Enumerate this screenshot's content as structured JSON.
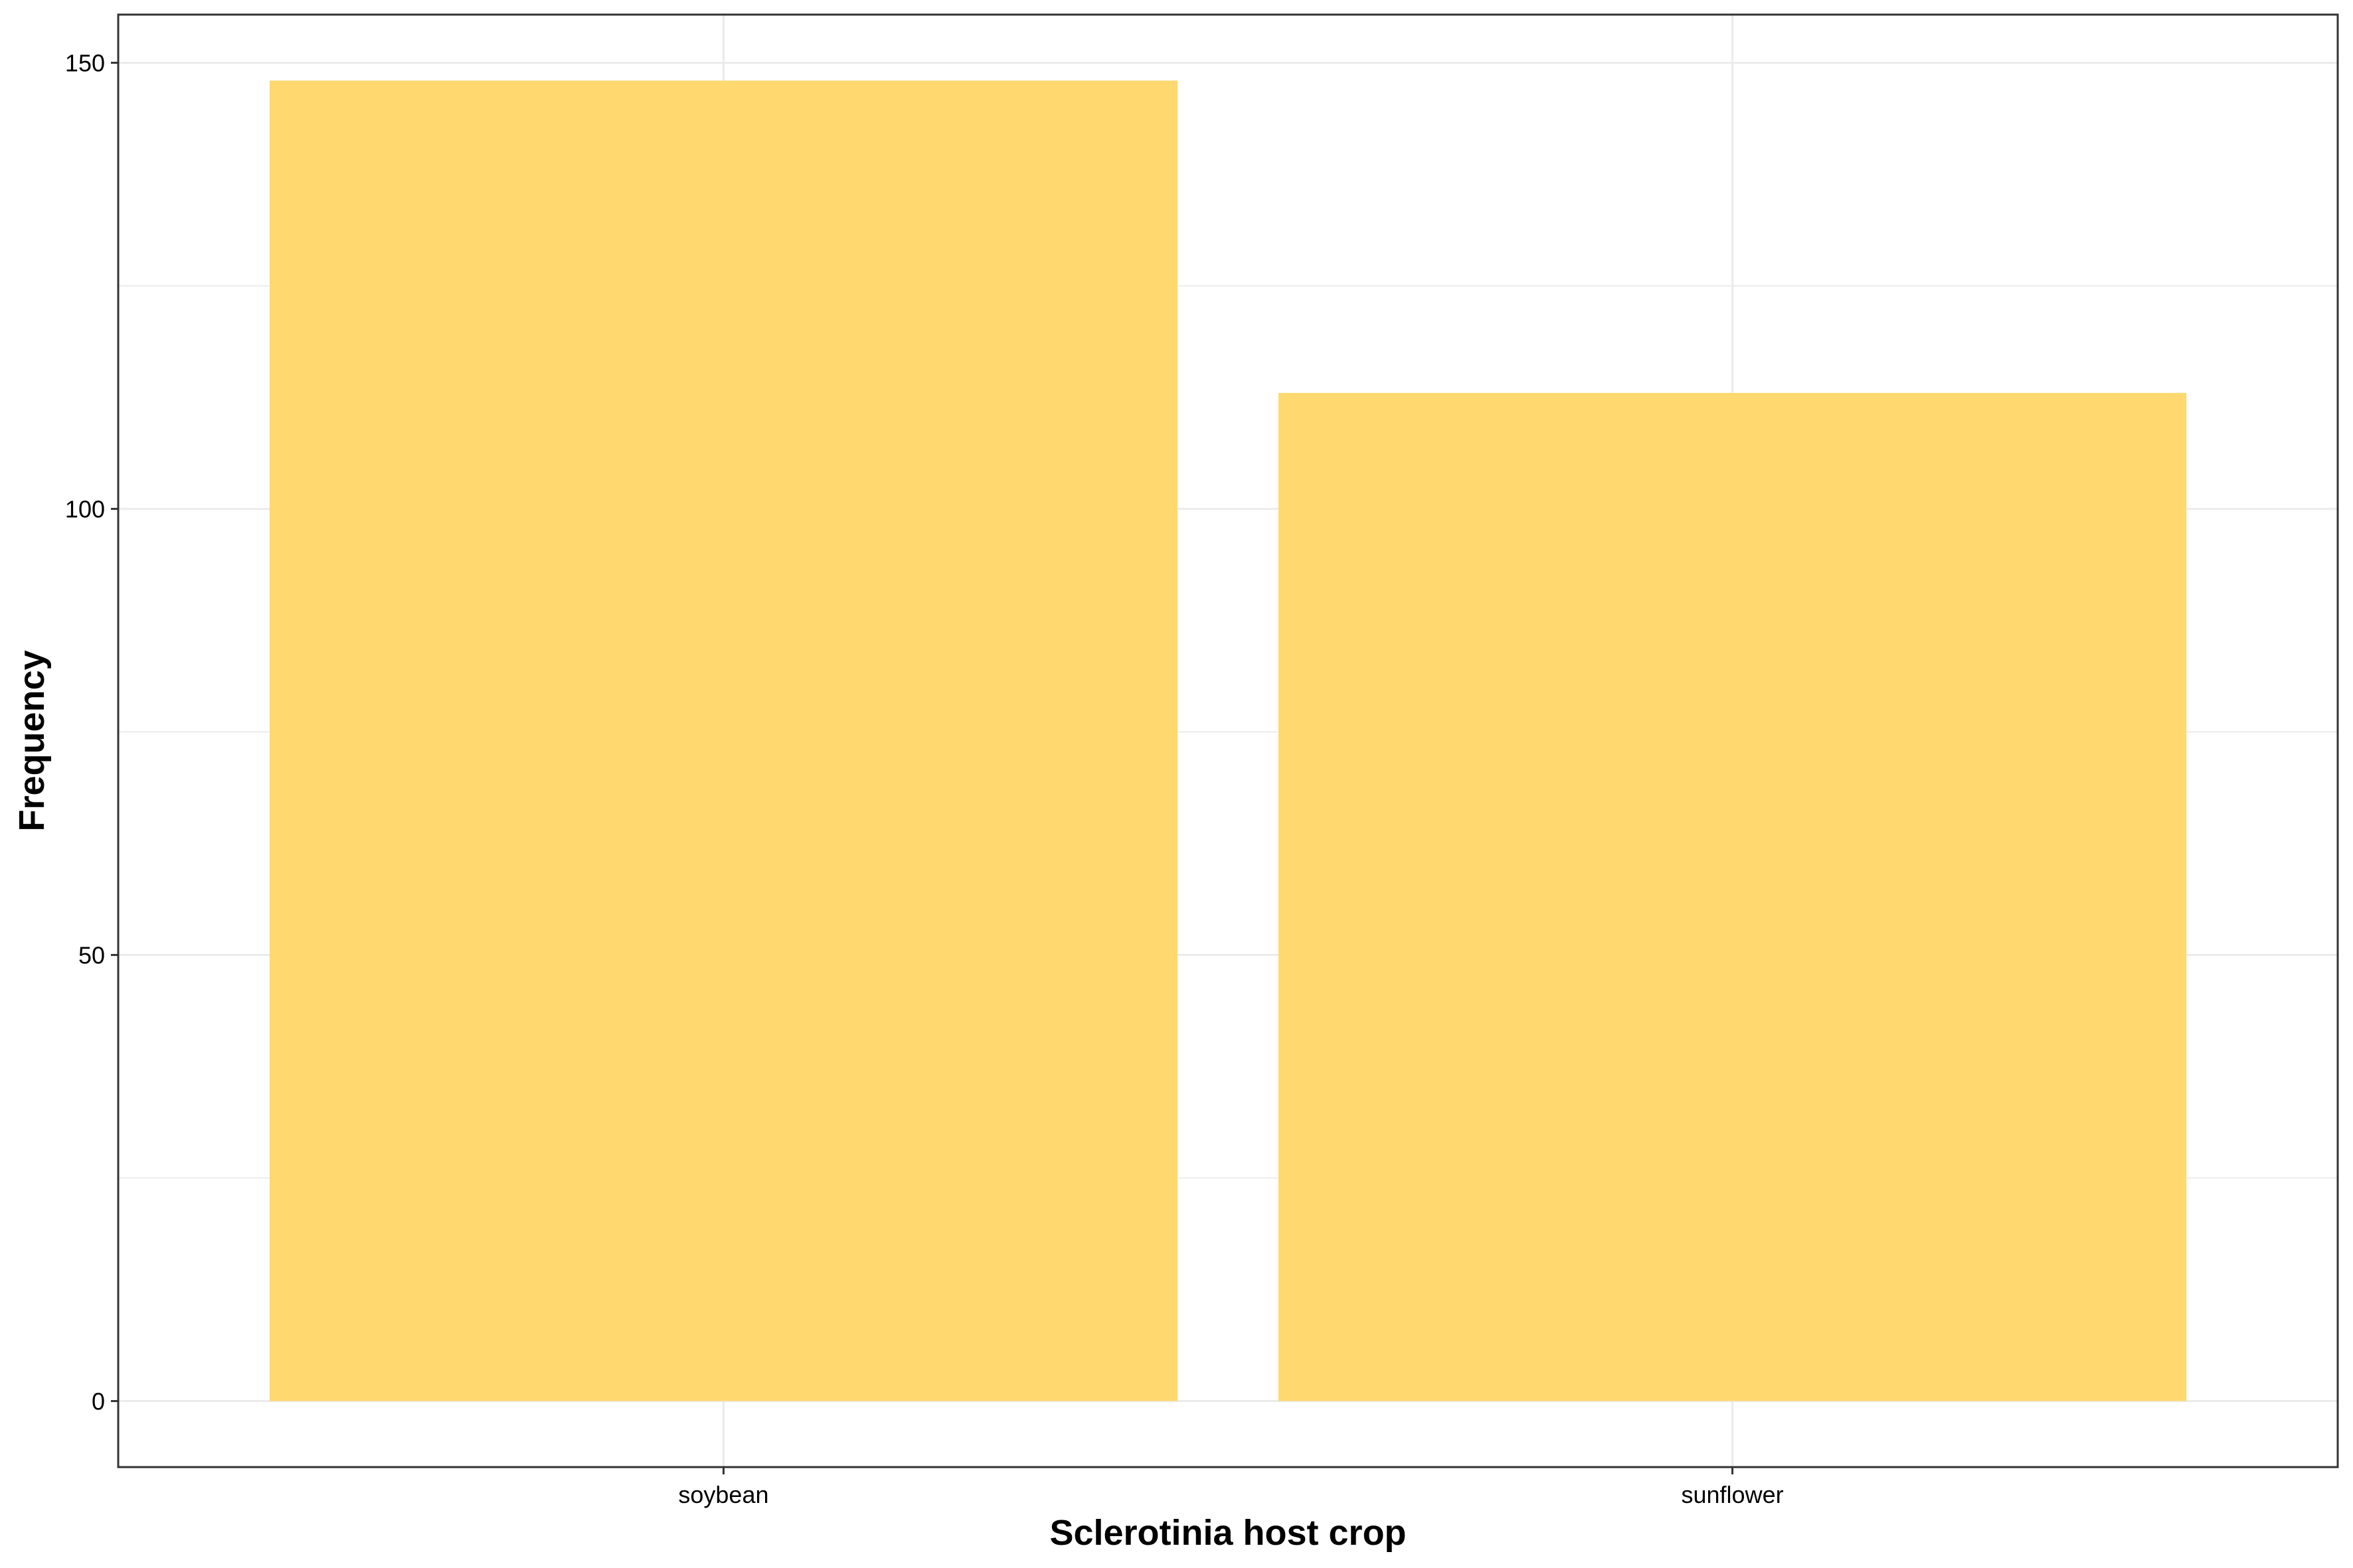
{
  "chart_data": {
    "type": "bar",
    "categories": [
      "soybean",
      "sunflower"
    ],
    "values": [
      148,
      113
    ],
    "title": "",
    "xlabel": "Sclerotinia host crop",
    "ylabel": "Frequency",
    "ylim": [
      -7.4,
      155.4
    ],
    "yticks": [
      0,
      50,
      100,
      150
    ],
    "y_minor_ticks": [
      25,
      75,
      125
    ],
    "grid": true,
    "bar_color": "#FFD96F",
    "gridline_color": "#EBEBEB",
    "panel_border_color": "#333333"
  }
}
